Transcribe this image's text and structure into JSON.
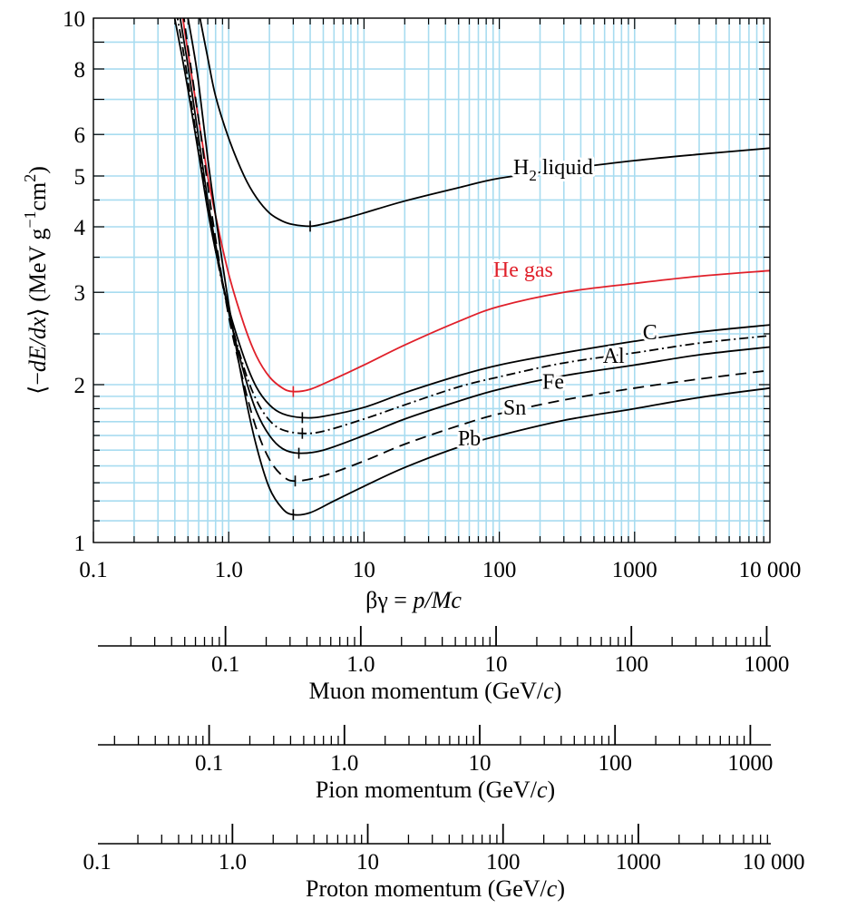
{
  "chart_data": {
    "type": "line",
    "x_scale": "log",
    "y_scale": "log",
    "xlim": [
      0.1,
      10000
    ],
    "ylim": [
      1,
      10
    ],
    "grid": true,
    "xlabel_prefix": "βγ = ",
    "xlabel_italic": "p/Mc",
    "ylabel": {
      "open": "⟨−",
      "var": "dE/dx",
      "close": "⟩ (MeV g",
      "exp1": "−1",
      "mid": "cm",
      "exp2": "2",
      "end": ")"
    },
    "x_ticks": [
      {
        "v": 0.1,
        "label": "0.1"
      },
      {
        "v": 1,
        "label": "1.0"
      },
      {
        "v": 10,
        "label": "10"
      },
      {
        "v": 100,
        "label": "100"
      },
      {
        "v": 1000,
        "label": "1000"
      },
      {
        "v": 10000,
        "label": "10 000"
      }
    ],
    "y_ticks": [
      {
        "v": 1,
        "label": "1"
      },
      {
        "v": 2,
        "label": "2"
      },
      {
        "v": 3,
        "label": "3"
      },
      {
        "v": 4,
        "label": "4"
      },
      {
        "v": 5,
        "label": "5"
      },
      {
        "v": 6,
        "label": "6"
      },
      {
        "v": 8,
        "label": "8"
      },
      {
        "v": 10,
        "label": "10"
      }
    ],
    "series": [
      {
        "name": "H2 liquid",
        "label_main": "H",
        "label_sub": "2",
        "label_rest": " liquid",
        "color": "#000000",
        "dash": "",
        "min_x": 4.0,
        "points": [
          [
            0.6,
            10.3
          ],
          [
            0.7,
            8.4
          ],
          [
            0.8,
            7.1
          ],
          [
            1,
            5.9
          ],
          [
            1.3,
            5.0
          ],
          [
            1.6,
            4.55
          ],
          [
            2,
            4.25
          ],
          [
            2.5,
            4.1
          ],
          [
            3,
            4.04
          ],
          [
            4,
            4.01
          ],
          [
            5,
            4.05
          ],
          [
            7,
            4.14
          ],
          [
            10,
            4.25
          ],
          [
            20,
            4.48
          ],
          [
            50,
            4.75
          ],
          [
            100,
            4.95
          ],
          [
            300,
            5.15
          ],
          [
            1000,
            5.35
          ],
          [
            3000,
            5.5
          ],
          [
            10000,
            5.65
          ]
        ]
      },
      {
        "name": "He gas",
        "label_main": "He gas",
        "color": "#e0202a",
        "dash": "",
        "min_x": 3.0,
        "points": [
          [
            0.45,
            10.3
          ],
          [
            0.5,
            8.6
          ],
          [
            0.6,
            6.4
          ],
          [
            0.7,
            5.0
          ],
          [
            0.8,
            4.2
          ],
          [
            1,
            3.25
          ],
          [
            1.3,
            2.6
          ],
          [
            1.6,
            2.27
          ],
          [
            2,
            2.07
          ],
          [
            2.5,
            1.97
          ],
          [
            3,
            1.94
          ],
          [
            4,
            1.96
          ],
          [
            6,
            2.05
          ],
          [
            10,
            2.18
          ],
          [
            20,
            2.38
          ],
          [
            50,
            2.64
          ],
          [
            100,
            2.82
          ],
          [
            300,
            3.0
          ],
          [
            1000,
            3.12
          ],
          [
            3000,
            3.22
          ],
          [
            10000,
            3.3
          ]
        ]
      },
      {
        "name": "C",
        "label_main": "C",
        "color": "#000000",
        "dash": "",
        "min_x": 3.5,
        "points": [
          [
            0.39,
            10.3
          ],
          [
            0.45,
            8.5
          ],
          [
            0.5,
            7.3
          ],
          [
            0.6,
            5.5
          ],
          [
            0.7,
            4.3
          ],
          [
            0.8,
            3.6
          ],
          [
            1,
            2.8
          ],
          [
            1.3,
            2.25
          ],
          [
            1.6,
            1.98
          ],
          [
            2,
            1.83
          ],
          [
            2.5,
            1.76
          ],
          [
            3.5,
            1.73
          ],
          [
            5,
            1.74
          ],
          [
            10,
            1.81
          ],
          [
            20,
            1.93
          ],
          [
            50,
            2.08
          ],
          [
            100,
            2.18
          ],
          [
            300,
            2.3
          ],
          [
            1000,
            2.42
          ],
          [
            3000,
            2.52
          ],
          [
            10000,
            2.6
          ]
        ]
      },
      {
        "name": "Al",
        "label_main": "Al",
        "color": "#000000",
        "dash": "10,4,2,4",
        "min_x": 3.5,
        "points": [
          [
            0.41,
            10.3
          ],
          [
            0.45,
            9.0
          ],
          [
            0.5,
            7.6
          ],
          [
            0.6,
            5.6
          ],
          [
            0.7,
            4.4
          ],
          [
            0.8,
            3.6
          ],
          [
            1,
            2.75
          ],
          [
            1.3,
            2.15
          ],
          [
            1.6,
            1.87
          ],
          [
            2,
            1.71
          ],
          [
            2.5,
            1.64
          ],
          [
            3.5,
            1.615
          ],
          [
            5,
            1.63
          ],
          [
            10,
            1.72
          ],
          [
            20,
            1.83
          ],
          [
            50,
            1.98
          ],
          [
            100,
            2.07
          ],
          [
            300,
            2.2
          ],
          [
            1000,
            2.3
          ],
          [
            3000,
            2.4
          ],
          [
            10000,
            2.48
          ]
        ]
      },
      {
        "name": "Fe",
        "label_main": "Fe",
        "color": "#000000",
        "dash": "",
        "min_x": 3.3,
        "points": [
          [
            0.43,
            10.3
          ],
          [
            0.5,
            8.1
          ],
          [
            0.6,
            5.9
          ],
          [
            0.7,
            4.5
          ],
          [
            0.8,
            3.7
          ],
          [
            1,
            2.75
          ],
          [
            1.3,
            2.1
          ],
          [
            1.6,
            1.78
          ],
          [
            2,
            1.6
          ],
          [
            2.5,
            1.51
          ],
          [
            3.3,
            1.48
          ],
          [
            5,
            1.5
          ],
          [
            10,
            1.6
          ],
          [
            20,
            1.72
          ],
          [
            50,
            1.86
          ],
          [
            100,
            1.96
          ],
          [
            300,
            2.08
          ],
          [
            1000,
            2.18
          ],
          [
            3000,
            2.28
          ],
          [
            10000,
            2.36
          ]
        ]
      },
      {
        "name": "Sn",
        "label_main": "Sn",
        "color": "#000000",
        "dash": "12,7",
        "min_x": 3.1,
        "points": [
          [
            0.46,
            10.3
          ],
          [
            0.5,
            8.8
          ],
          [
            0.6,
            6.4
          ],
          [
            0.7,
            4.8
          ],
          [
            0.8,
            3.8
          ],
          [
            1,
            2.7
          ],
          [
            1.3,
            2.0
          ],
          [
            1.6,
            1.65
          ],
          [
            2,
            1.44
          ],
          [
            2.5,
            1.34
          ],
          [
            3.1,
            1.31
          ],
          [
            5,
            1.34
          ],
          [
            10,
            1.43
          ],
          [
            20,
            1.54
          ],
          [
            50,
            1.67
          ],
          [
            100,
            1.76
          ],
          [
            300,
            1.87
          ],
          [
            1000,
            1.97
          ],
          [
            3000,
            2.05
          ],
          [
            10000,
            2.13
          ]
        ]
      },
      {
        "name": "Pb",
        "label_main": "Pb",
        "color": "#000000",
        "dash": "",
        "min_x": 3.0,
        "points": [
          [
            0.49,
            10.3
          ],
          [
            0.55,
            8.7
          ],
          [
            0.6,
            7.5
          ],
          [
            0.7,
            5.4
          ],
          [
            0.8,
            4.2
          ],
          [
            1,
            2.85
          ],
          [
            1.3,
            1.95
          ],
          [
            1.6,
            1.53
          ],
          [
            2,
            1.27
          ],
          [
            2.5,
            1.16
          ],
          [
            3,
            1.13
          ],
          [
            4,
            1.14
          ],
          [
            6,
            1.2
          ],
          [
            10,
            1.28
          ],
          [
            20,
            1.39
          ],
          [
            50,
            1.52
          ],
          [
            100,
            1.6
          ],
          [
            300,
            1.71
          ],
          [
            1000,
            1.8
          ],
          [
            3000,
            1.89
          ],
          [
            10000,
            1.97
          ]
        ]
      }
    ],
    "labels": [
      {
        "series": 0,
        "x": 250,
        "y": 5.2
      },
      {
        "series": 1,
        "x": 150,
        "y": 3.32
      },
      {
        "series": 2,
        "x": 1300,
        "y": 2.52
      },
      {
        "series": 3,
        "x": 700,
        "y": 2.27
      },
      {
        "series": 4,
        "x": 250,
        "y": 2.03
      },
      {
        "series": 5,
        "x": 130,
        "y": 1.81
      },
      {
        "series": 6,
        "x": 60,
        "y": 1.58
      }
    ],
    "momentum_axes": [
      {
        "title": "Muon momentum (GeV/",
        "title_c": "c",
        "title_end": ")",
        "mass": 0.10566,
        "labels": [
          {
            "v": 0.1,
            "label": "0.1"
          },
          {
            "v": 1,
            "label": "1.0"
          },
          {
            "v": 10,
            "label": "10"
          },
          {
            "v": 100,
            "label": "100"
          },
          {
            "v": 1000,
            "label": "1000"
          }
        ]
      },
      {
        "title": "Pion momentum (GeV/",
        "title_c": "c",
        "title_end": ")",
        "mass": 0.13957,
        "labels": [
          {
            "v": 0.1,
            "label": "0.1"
          },
          {
            "v": 1,
            "label": "1.0"
          },
          {
            "v": 10,
            "label": "10"
          },
          {
            "v": 100,
            "label": "100"
          },
          {
            "v": 1000,
            "label": "1000"
          }
        ]
      },
      {
        "title": "Proton momentum (GeV/",
        "title_c": "c",
        "title_end": ")",
        "mass": 0.93827,
        "labels": [
          {
            "v": 0.1,
            "label": "0.1"
          },
          {
            "v": 1,
            "label": "1.0"
          },
          {
            "v": 10,
            "label": "10"
          },
          {
            "v": 100,
            "label": "100"
          },
          {
            "v": 1000,
            "label": "1000"
          },
          {
            "v": 10000,
            "label": "10 000"
          }
        ]
      }
    ],
    "grid_color": "#a8dcf0"
  }
}
